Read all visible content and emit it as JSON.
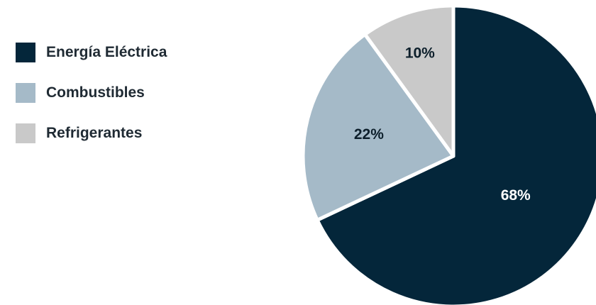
{
  "chart_data": {
    "type": "pie",
    "legend_position": "left",
    "slices": [
      {
        "label": "Energía Eléctrica",
        "value": 68,
        "display": "68%",
        "color": "#04263a",
        "label_color": "#ffffff"
      },
      {
        "label": "Combustibles",
        "value": 22,
        "display": "22%",
        "color": "#a5bac8",
        "label_color": "#0d1f2b"
      },
      {
        "label": "Refrigerantes",
        "value": 10,
        "display": "10%",
        "color": "#c9c9c9",
        "label_color": "#0d1f2b"
      }
    ]
  },
  "legend": {
    "items": [
      {
        "label": "Energía Eléctrica",
        "color": "#04263a"
      },
      {
        "label": "Combustibles",
        "color": "#a5bac8"
      },
      {
        "label": "Refrigerantes",
        "color": "#c9c9c9"
      }
    ]
  }
}
